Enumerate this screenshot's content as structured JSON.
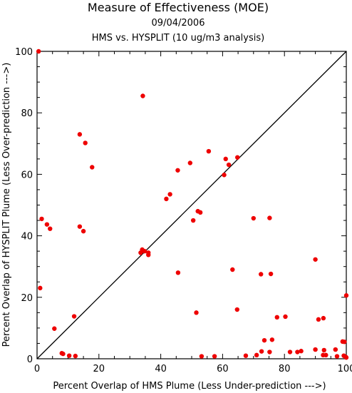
{
  "chart_data": {
    "type": "scatter",
    "title": "Measure of Effectiveness (MOE)",
    "subtitle_date": "09/04/2006",
    "subtitle": "HMS vs. HYSPLIT  (10 ug/m3 analysis)",
    "xlabel": "Percent Overlap of HMS Plume (Less Under-prediction --->)",
    "ylabel": "Percent Overlap of HYSPLIT Plume (Less Over-prediction --->)",
    "xlim": [
      0,
      100
    ],
    "ylim": [
      0,
      100
    ],
    "x_ticks": [
      "0",
      "20",
      "40",
      "60",
      "80",
      "100"
    ],
    "y_ticks": [
      "0",
      "20",
      "40",
      "60",
      "80",
      "100"
    ],
    "grid": false,
    "reference_line": "diagonal y = x",
    "point_color": "#ee0000",
    "points": [
      [
        0.5,
        100
      ],
      [
        34.2,
        85.5
      ],
      [
        13.8,
        73
      ],
      [
        15.6,
        70.2
      ],
      [
        17.8,
        62.3
      ],
      [
        55.5,
        67.5
      ],
      [
        61,
        65
      ],
      [
        64.8,
        65.5
      ],
      [
        49.5,
        63.7
      ],
      [
        62,
        63.1
      ],
      [
        45.5,
        61.3
      ],
      [
        60.5,
        59.8
      ],
      [
        43,
        53.5
      ],
      [
        41.8,
        52
      ],
      [
        52,
        48
      ],
      [
        52.8,
        47.6
      ],
      [
        50.5,
        45
      ],
      [
        70,
        45.7
      ],
      [
        75.2,
        45.8
      ],
      [
        1.5,
        45.5
      ],
      [
        3.2,
        43.7
      ],
      [
        4.2,
        42.3
      ],
      [
        13.8,
        43
      ],
      [
        15,
        41.5
      ],
      [
        33.5,
        34.5
      ],
      [
        34,
        35.5
      ],
      [
        34.8,
        35
      ],
      [
        36,
        34.5
      ],
      [
        36,
        33.8
      ],
      [
        63.2,
        29
      ],
      [
        45.6,
        28
      ],
      [
        72.4,
        27.5
      ],
      [
        75.6,
        27.6
      ],
      [
        90,
        32.3
      ],
      [
        1,
        23
      ],
      [
        100,
        20.6
      ],
      [
        12,
        13.8
      ],
      [
        51.5,
        15
      ],
      [
        64.7,
        16
      ],
      [
        77.6,
        13.5
      ],
      [
        80.3,
        13.7
      ],
      [
        91,
        12.8
      ],
      [
        92.6,
        13.2
      ],
      [
        76,
        6.2
      ],
      [
        73.5,
        6
      ],
      [
        5.6,
        9.8
      ],
      [
        8,
        1.8
      ],
      [
        8.4,
        1.6
      ],
      [
        10.4,
        1
      ],
      [
        12.4,
        0.9
      ],
      [
        53.2,
        0.8
      ],
      [
        57.4,
        0.8
      ],
      [
        67.5,
        1
      ],
      [
        71,
        1.2
      ],
      [
        72.6,
        2.4
      ],
      [
        75.2,
        2.2
      ],
      [
        81.8,
        2.2
      ],
      [
        84.2,
        2.2
      ],
      [
        85.4,
        2.5
      ],
      [
        90,
        3
      ],
      [
        92.8,
        2.8
      ],
      [
        92.5,
        1.2
      ],
      [
        93.4,
        1.2
      ],
      [
        96.5,
        3
      ],
      [
        97,
        0.8
      ],
      [
        98.8,
        5.6
      ],
      [
        99.4,
        5.5
      ],
      [
        99.2,
        1
      ],
      [
        99.8,
        0.6
      ],
      [
        100,
        0.4
      ]
    ]
  }
}
